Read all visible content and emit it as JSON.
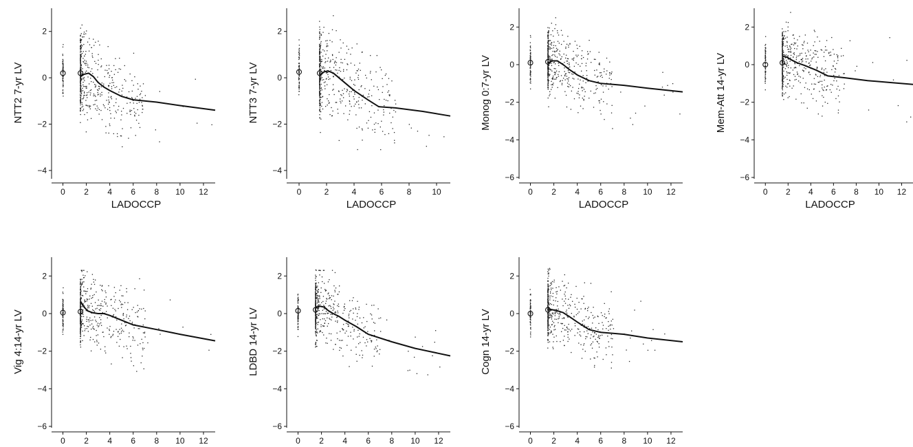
{
  "figure_title": "",
  "chart_data": [
    {
      "type": "scatter",
      "xlabel": "LADOCCP",
      "ylabel": "NTT2 7-yr LV",
      "xlim": [
        -0.5,
        13
      ],
      "ylim": [
        -4.3,
        3
      ],
      "xticks": [
        0,
        2,
        4,
        6,
        8,
        10,
        12
      ],
      "yticks": [
        -4,
        -2,
        0,
        2
      ],
      "points_hint": "dense vertical clusters at x=0 and x=1.5, scattered points between 1.5 and 6, few beyond",
      "group_means": [
        {
          "x": 0,
          "y": 0.2
        },
        {
          "x": 1.5,
          "y": 0.2
        }
      ],
      "smooth_line": {
        "x": [
          1.5,
          1.8,
          2.2,
          2.6,
          3.0,
          3.5,
          4.0,
          5.0,
          6.0,
          8.0,
          10.0,
          13.0
        ],
        "y": [
          0.05,
          0.15,
          0.2,
          0.05,
          -0.2,
          -0.4,
          -0.55,
          -0.8,
          -0.95,
          -1.05,
          -1.2,
          -1.4
        ]
      },
      "y_spread": [
        -2.5,
        2.5
      ]
    },
    {
      "type": "scatter",
      "xlabel": "LADOCCP",
      "ylabel": "NTT3 7-yr LV",
      "xlim": [
        -0.5,
        11
      ],
      "ylim": [
        -4.3,
        3
      ],
      "xticks": [
        0,
        2,
        4,
        6,
        8,
        10
      ],
      "yticks": [
        -4,
        -2,
        0,
        2
      ],
      "group_means": [
        {
          "x": 0,
          "y": 0.25
        },
        {
          "x": 1.5,
          "y": 0.2
        }
      ],
      "smooth_line": {
        "x": [
          1.5,
          1.8,
          2.1,
          2.5,
          3.0,
          3.5,
          4.0,
          5.0,
          5.8,
          7.0,
          9.0,
          11.0
        ],
        "y": [
          0.1,
          0.25,
          0.3,
          0.2,
          -0.05,
          -0.3,
          -0.55,
          -0.95,
          -1.25,
          -1.3,
          -1.45,
          -1.65
        ]
      },
      "y_spread": [
        -2.5,
        2.5
      ]
    },
    {
      "type": "scatter",
      "xlabel": "LADOCCP",
      "ylabel": "Monog 0:7-yr LV",
      "xlim": [
        -0.5,
        13
      ],
      "ylim": [
        -6,
        3
      ],
      "xticks": [
        0,
        2,
        4,
        6,
        8,
        10,
        12
      ],
      "yticks": [
        -6,
        -4,
        -2,
        0,
        2
      ],
      "group_means": [
        {
          "x": 0,
          "y": 0.1
        },
        {
          "x": 1.5,
          "y": 0.15
        }
      ],
      "smooth_line": {
        "x": [
          1.5,
          1.9,
          2.3,
          2.8,
          3.3,
          4.0,
          5.0,
          6.0,
          8.0,
          10.0,
          13.0
        ],
        "y": [
          0.1,
          0.2,
          0.2,
          0.0,
          -0.25,
          -0.55,
          -0.85,
          -1.0,
          -1.1,
          -1.25,
          -1.45
        ]
      },
      "y_spread": [
        -3,
        2.5
      ]
    },
    {
      "type": "scatter",
      "xlabel": "LADOCCP",
      "ylabel": "Mem-Att 14-yr LV",
      "xlim": [
        -0.5,
        13
      ],
      "ylim": [
        -6,
        3
      ],
      "xticks": [
        0,
        2,
        4,
        6,
        8,
        10,
        12
      ],
      "yticks": [
        -6,
        -4,
        -2,
        0,
        2
      ],
      "group_means": [
        {
          "x": 0,
          "y": 0.0
        },
        {
          "x": 1.5,
          "y": 0.1
        }
      ],
      "smooth_line": {
        "x": [
          1.5,
          1.9,
          2.3,
          2.8,
          3.5,
          4.5,
          5.5,
          7.0,
          9.0,
          11.0,
          13.0
        ],
        "y": [
          0.45,
          0.4,
          0.25,
          0.1,
          -0.05,
          -0.3,
          -0.6,
          -0.7,
          -0.85,
          -0.95,
          -1.05
        ]
      },
      "y_spread": [
        -3,
        2.5
      ]
    },
    {
      "type": "scatter",
      "xlabel": "LADOCCP",
      "ylabel": "Vig 4:14-yr LV",
      "xlim": [
        -0.5,
        13
      ],
      "ylim": [
        -6,
        3
      ],
      "xticks": [
        0,
        2,
        4,
        6,
        8,
        10,
        12
      ],
      "yticks": [
        -6,
        -4,
        -2,
        0,
        2
      ],
      "group_means": [
        {
          "x": 0,
          "y": 0.05
        },
        {
          "x": 1.5,
          "y": 0.1
        }
      ],
      "smooth_line": {
        "x": [
          1.5,
          1.8,
          2.1,
          2.5,
          3.0,
          3.5,
          4.0,
          5.0,
          6.0,
          8.0,
          10.0,
          13.0
        ],
        "y": [
          0.65,
          0.35,
          0.15,
          0.05,
          0.0,
          0.0,
          -0.1,
          -0.35,
          -0.6,
          -0.85,
          -1.1,
          -1.45
        ]
      },
      "y_spread": [
        -3,
        2
      ]
    },
    {
      "type": "scatter",
      "xlabel": "LADOCCP",
      "ylabel": "LDBD 14-yr LV",
      "xlim": [
        -0.5,
        13
      ],
      "ylim": [
        -6,
        3
      ],
      "xticks": [
        0,
        2,
        4,
        6,
        8,
        10,
        12
      ],
      "yticks": [
        -6,
        -4,
        -2,
        0,
        2
      ],
      "group_means": [
        {
          "x": 0,
          "y": 0.15
        },
        {
          "x": 1.5,
          "y": 0.2
        }
      ],
      "smooth_line": {
        "x": [
          1.5,
          1.8,
          2.2,
          2.6,
          3.0,
          3.5,
          4.0,
          5.0,
          6.0,
          8.0,
          10.0,
          13.0
        ],
        "y": [
          0.3,
          0.4,
          0.35,
          0.15,
          0.0,
          -0.15,
          -0.35,
          -0.7,
          -1.1,
          -1.5,
          -1.85,
          -2.25
        ]
      },
      "y_spread": [
        -3,
        2
      ]
    },
    {
      "type": "scatter",
      "xlabel": "LADOCCP",
      "ylabel": "Cogn 14-yr LV",
      "xlim": [
        -0.5,
        13
      ],
      "ylim": [
        -6,
        3
      ],
      "xticks": [
        0,
        2,
        4,
        6,
        8,
        10,
        12
      ],
      "yticks": [
        -6,
        -4,
        -2,
        0,
        2
      ],
      "group_means": [
        {
          "x": 0,
          "y": 0.0
        },
        {
          "x": 1.5,
          "y": 0.2
        }
      ],
      "smooth_line": {
        "x": [
          1.5,
          1.9,
          2.3,
          2.8,
          3.3,
          4.0,
          5.0,
          6.0,
          8.0,
          10.0,
          13.0
        ],
        "y": [
          0.25,
          0.2,
          0.15,
          0.05,
          -0.15,
          -0.45,
          -0.85,
          -1.0,
          -1.1,
          -1.3,
          -1.5
        ]
      },
      "y_spread": [
        -2.5,
        2.2
      ]
    }
  ]
}
